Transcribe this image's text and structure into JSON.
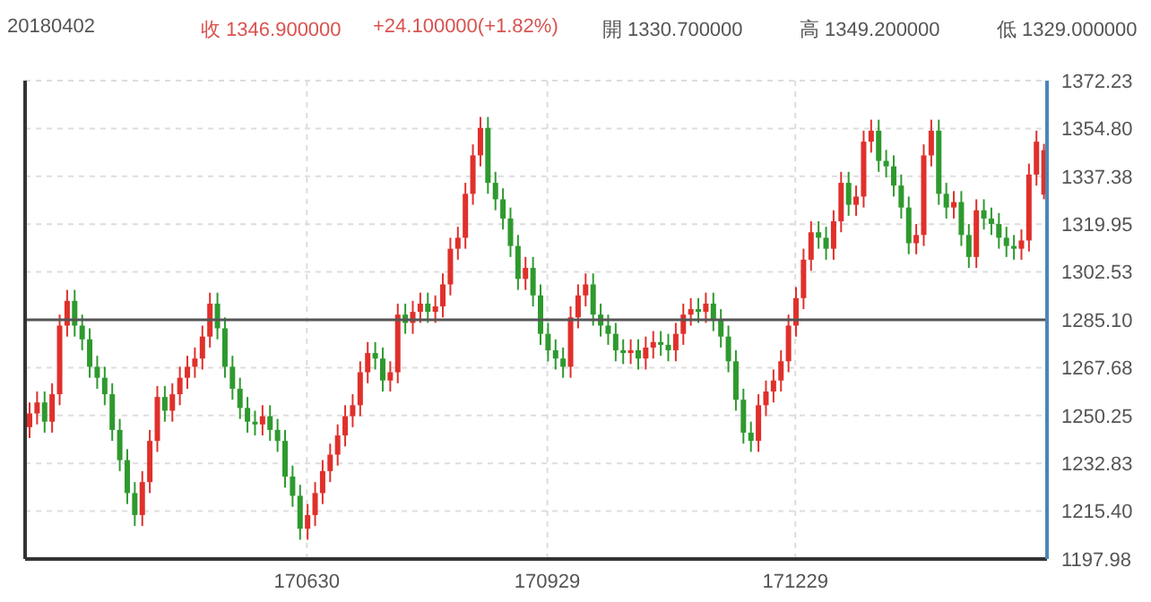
{
  "chart_data": {
    "type": "candlestick",
    "annotations": [
      "20180402",
      "收 1346.900000",
      "+24.100000(+1.82%)",
      "開 1330.700000",
      "高 1349.200000",
      "低 1329.000000"
    ],
    "categories": [
      null,
      null,
      null,
      null,
      null,
      null,
      null,
      null,
      null,
      null,
      null,
      null,
      null,
      null,
      null,
      null,
      null,
      null,
      null,
      null,
      null,
      null,
      null,
      null,
      null,
      null,
      null,
      null,
      null,
      null,
      null,
      null,
      null,
      null,
      null,
      null,
      null,
      "170630",
      null,
      null,
      null,
      null,
      null,
      null,
      null,
      null,
      null,
      null,
      null,
      null,
      null,
      null,
      null,
      null,
      null,
      null,
      null,
      null,
      null,
      null,
      null,
      null,
      null,
      null,
      null,
      null,
      null,
      null,
      null,
      "170929",
      null,
      null,
      null,
      null,
      null,
      null,
      null,
      null,
      null,
      null,
      null,
      null,
      null,
      null,
      null,
      null,
      null,
      null,
      null,
      null,
      null,
      null,
      null,
      null,
      null,
      null,
      null,
      null,
      null,
      null,
      null,
      null,
      "171229",
      null,
      null,
      null,
      null,
      null,
      null,
      null,
      null,
      null,
      null,
      null,
      null,
      null,
      null,
      null,
      null,
      null,
      null,
      null,
      null,
      null,
      null,
      null,
      null,
      null,
      null,
      null,
      null,
      null,
      null,
      null,
      null,
      null
    ],
    "ohlc": [
      [
        1246,
        1255,
        1242,
        1251
      ],
      [
        1251,
        1259,
        1247,
        1255
      ],
      [
        1255,
        1259,
        1244,
        1248
      ],
      [
        1248,
        1262,
        1244,
        1258
      ],
      [
        1258,
        1287,
        1254,
        1283
      ],
      [
        1283,
        1296,
        1279,
        1292
      ],
      [
        1292,
        1296,
        1279,
        1283
      ],
      [
        1283,
        1287,
        1274,
        1278
      ],
      [
        1278,
        1282,
        1264,
        1268
      ],
      [
        1268,
        1272,
        1260,
        1264
      ],
      [
        1264,
        1268,
        1254,
        1258
      ],
      [
        1258,
        1262,
        1241,
        1245
      ],
      [
        1245,
        1249,
        1230,
        1234
      ],
      [
        1234,
        1238,
        1218,
        1222
      ],
      [
        1222,
        1226,
        1210,
        1214
      ],
      [
        1214,
        1230,
        1210,
        1226
      ],
      [
        1226,
        1245,
        1222,
        1241
      ],
      [
        1241,
        1261,
        1237,
        1257
      ],
      [
        1257,
        1261,
        1248,
        1252
      ],
      [
        1252,
        1262,
        1248,
        1258
      ],
      [
        1258,
        1268,
        1254,
        1264
      ],
      [
        1264,
        1272,
        1260,
        1268
      ],
      [
        1268,
        1275,
        1264,
        1271
      ],
      [
        1271,
        1283,
        1267,
        1279
      ],
      [
        1279,
        1295,
        1275,
        1291
      ],
      [
        1291,
        1295,
        1278,
        1282
      ],
      [
        1282,
        1286,
        1264,
        1268
      ],
      [
        1268,
        1272,
        1256,
        1260
      ],
      [
        1260,
        1264,
        1249,
        1253
      ],
      [
        1253,
        1257,
        1244,
        1248
      ],
      [
        1248,
        1252,
        1243,
        1247
      ],
      [
        1247,
        1254,
        1243,
        1250
      ],
      [
        1250,
        1254,
        1241,
        1245
      ],
      [
        1245,
        1249,
        1237,
        1241
      ],
      [
        1241,
        1245,
        1224,
        1228
      ],
      [
        1228,
        1232,
        1217,
        1221
      ],
      [
        1221,
        1225,
        1205,
        1209
      ],
      [
        1209,
        1218,
        1205,
        1214
      ],
      [
        1214,
        1226,
        1210,
        1222
      ],
      [
        1222,
        1234,
        1218,
        1230
      ],
      [
        1230,
        1240,
        1226,
        1236
      ],
      [
        1236,
        1247,
        1232,
        1243
      ],
      [
        1243,
        1254,
        1239,
        1250
      ],
      [
        1250,
        1258,
        1246,
        1254
      ],
      [
        1254,
        1270,
        1250,
        1266
      ],
      [
        1266,
        1277,
        1262,
        1273
      ],
      [
        1273,
        1277,
        1267,
        1271
      ],
      [
        1271,
        1275,
        1259,
        1263
      ],
      [
        1263,
        1270,
        1259,
        1266
      ],
      [
        1266,
        1291,
        1262,
        1287
      ],
      [
        1287,
        1291,
        1280,
        1284
      ],
      [
        1284,
        1292,
        1280,
        1288
      ],
      [
        1288,
        1295,
        1284,
        1291
      ],
      [
        1291,
        1295,
        1284,
        1288
      ],
      [
        1288,
        1294,
        1284,
        1290
      ],
      [
        1290,
        1302,
        1286,
        1298
      ],
      [
        1298,
        1315,
        1294,
        1311
      ],
      [
        1311,
        1319,
        1307,
        1315
      ],
      [
        1315,
        1335,
        1311,
        1331
      ],
      [
        1331,
        1349,
        1327,
        1345
      ],
      [
        1345,
        1359,
        1341,
        1355
      ],
      [
        1355,
        1359,
        1331,
        1335
      ],
      [
        1335,
        1339,
        1325,
        1329
      ],
      [
        1329,
        1333,
        1318,
        1322
      ],
      [
        1322,
        1326,
        1308,
        1312
      ],
      [
        1312,
        1316,
        1296,
        1300
      ],
      [
        1300,
        1308,
        1296,
        1304
      ],
      [
        1304,
        1308,
        1290,
        1294
      ],
      [
        1294,
        1298,
        1276,
        1280
      ],
      [
        1280,
        1284,
        1270,
        1274
      ],
      [
        1274,
        1278,
        1267,
        1271
      ],
      [
        1271,
        1275,
        1264,
        1268
      ],
      [
        1268,
        1290,
        1264,
        1286
      ],
      [
        1286,
        1298,
        1282,
        1294
      ],
      [
        1294,
        1302,
        1290,
        1298
      ],
      [
        1298,
        1302,
        1283,
        1287
      ],
      [
        1287,
        1291,
        1279,
        1283
      ],
      [
        1283,
        1287,
        1276,
        1280
      ],
      [
        1280,
        1284,
        1270,
        1274
      ],
      [
        1274,
        1278,
        1269,
        1273
      ],
      [
        1273,
        1278,
        1269,
        1274
      ],
      [
        1274,
        1278,
        1267,
        1271
      ],
      [
        1271,
        1279,
        1267,
        1275
      ],
      [
        1275,
        1281,
        1271,
        1277
      ],
      [
        1277,
        1281,
        1272,
        1276
      ],
      [
        1276,
        1280,
        1270,
        1274
      ],
      [
        1274,
        1284,
        1270,
        1280
      ],
      [
        1280,
        1291,
        1276,
        1287
      ],
      [
        1287,
        1293,
        1283,
        1289
      ],
      [
        1289,
        1293,
        1284,
        1288
      ],
      [
        1288,
        1295,
        1284,
        1291
      ],
      [
        1291,
        1295,
        1281,
        1285
      ],
      [
        1285,
        1289,
        1275,
        1279
      ],
      [
        1279,
        1283,
        1266,
        1270
      ],
      [
        1270,
        1274,
        1252,
        1256
      ],
      [
        1256,
        1260,
        1240,
        1244
      ],
      [
        1244,
        1248,
        1237,
        1241
      ],
      [
        1241,
        1258,
        1237,
        1254
      ],
      [
        1254,
        1263,
        1250,
        1259
      ],
      [
        1259,
        1267,
        1255,
        1263
      ],
      [
        1263,
        1274,
        1259,
        1270
      ],
      [
        1270,
        1287,
        1266,
        1283
      ],
      [
        1283,
        1297,
        1279,
        1293
      ],
      [
        1293,
        1311,
        1289,
        1307
      ],
      [
        1307,
        1321,
        1303,
        1317
      ],
      [
        1317,
        1321,
        1311,
        1315
      ],
      [
        1315,
        1319,
        1307,
        1311
      ],
      [
        1311,
        1325,
        1307,
        1321
      ],
      [
        1321,
        1339,
        1317,
        1335
      ],
      [
        1335,
        1339,
        1323,
        1327
      ],
      [
        1327,
        1334,
        1323,
        1330
      ],
      [
        1330,
        1354,
        1326,
        1350
      ],
      [
        1350,
        1358,
        1346,
        1354
      ],
      [
        1354,
        1358,
        1339,
        1343
      ],
      [
        1343,
        1347,
        1337,
        1341
      ],
      [
        1341,
        1345,
        1330,
        1334
      ],
      [
        1334,
        1338,
        1322,
        1326
      ],
      [
        1326,
        1330,
        1309,
        1313
      ],
      [
        1313,
        1320,
        1309,
        1316
      ],
      [
        1316,
        1349,
        1312,
        1345
      ],
      [
        1345,
        1358,
        1341,
        1354
      ],
      [
        1354,
        1358,
        1327,
        1331
      ],
      [
        1331,
        1335,
        1322,
        1326
      ],
      [
        1326,
        1332,
        1322,
        1328
      ],
      [
        1328,
        1332,
        1312,
        1316
      ],
      [
        1316,
        1320,
        1304,
        1308
      ],
      [
        1308,
        1329,
        1304,
        1325
      ],
      [
        1325,
        1329,
        1318,
        1322
      ],
      [
        1322,
        1326,
        1316,
        1320
      ],
      [
        1320,
        1324,
        1311,
        1315
      ],
      [
        1315,
        1319,
        1308,
        1312
      ],
      [
        1312,
        1316,
        1307,
        1311
      ],
      [
        1311,
        1318,
        1307,
        1314
      ],
      [
        1314,
        1342,
        1310,
        1338
      ],
      [
        1338,
        1354,
        1334,
        1350
      ],
      [
        1330.7,
        1349.2,
        1329,
        1346.9
      ]
    ],
    "colors": [
      "#e0302b",
      "#e0302b",
      "#2e9a2e",
      "#e0302b",
      "#e0302b",
      "#e0302b",
      "#2e9a2e",
      "#2e9a2e",
      "#2e9a2e",
      "#2e9a2e",
      "#2e9a2e",
      "#2e9a2e",
      "#2e9a2e",
      "#2e9a2e",
      "#2e9a2e",
      "#e0302b",
      "#e0302b",
      "#e0302b",
      "#2e9a2e",
      "#e0302b",
      "#e0302b",
      "#e0302b",
      "#e0302b",
      "#e0302b",
      "#e0302b",
      "#2e9a2e",
      "#2e9a2e",
      "#2e9a2e",
      "#2e9a2e",
      "#2e9a2e",
      "#2e9a2e",
      "#e0302b",
      "#2e9a2e",
      "#2e9a2e",
      "#2e9a2e",
      "#2e9a2e",
      "#2e9a2e",
      "#e0302b",
      "#e0302b",
      "#e0302b",
      "#e0302b",
      "#e0302b",
      "#e0302b",
      "#e0302b",
      "#e0302b",
      "#e0302b",
      "#2e9a2e",
      "#2e9a2e",
      "#e0302b",
      "#e0302b",
      "#2e9a2e",
      "#e0302b",
      "#e0302b",
      "#2e9a2e",
      "#e0302b",
      "#e0302b",
      "#e0302b",
      "#e0302b",
      "#e0302b",
      "#e0302b",
      "#e0302b",
      "#2e9a2e",
      "#2e9a2e",
      "#2e9a2e",
      "#2e9a2e",
      "#2e9a2e",
      "#e0302b",
      "#2e9a2e",
      "#2e9a2e",
      "#2e9a2e",
      "#2e9a2e",
      "#2e9a2e",
      "#e0302b",
      "#e0302b",
      "#e0302b",
      "#2e9a2e",
      "#2e9a2e",
      "#2e9a2e",
      "#2e9a2e",
      "#2e9a2e",
      "#e0302b",
      "#2e9a2e",
      "#e0302b",
      "#e0302b",
      "#2e9a2e",
      "#2e9a2e",
      "#e0302b",
      "#e0302b",
      "#e0302b",
      "#2e9a2e",
      "#e0302b",
      "#2e9a2e",
      "#2e9a2e",
      "#2e9a2e",
      "#2e9a2e",
      "#2e9a2e",
      "#2e9a2e",
      "#e0302b",
      "#e0302b",
      "#e0302b",
      "#e0302b",
      "#e0302b",
      "#e0302b",
      "#e0302b",
      "#e0302b",
      "#2e9a2e",
      "#2e9a2e",
      "#e0302b",
      "#e0302b",
      "#2e9a2e",
      "#e0302b",
      "#e0302b",
      "#e0302b",
      "#2e9a2e",
      "#2e9a2e",
      "#2e9a2e",
      "#2e9a2e",
      "#2e9a2e",
      "#e0302b",
      "#e0302b",
      "#e0302b",
      "#2e9a2e",
      "#2e9a2e",
      "#e0302b",
      "#2e9a2e",
      "#2e9a2e",
      "#e0302b",
      "#2e9a2e",
      "#2e9a2e",
      "#2e9a2e",
      "#2e9a2e",
      "#2e9a2e",
      "#e0302b",
      "#e0302b",
      "#e0302b",
      "#e0302b"
    ],
    "ylim": [
      1197.98,
      1372.23
    ],
    "yticks": [
      1372.23,
      {
        "value": 1354.8,
        "label": "1354.80"
      },
      1337.38,
      1319.95,
      1302.53,
      {
        "value": 1285.1,
        "label": "1285.10"
      },
      1267.68,
      1250.25,
      1232.83,
      {
        "value": 1215.4,
        "label": "1215.40"
      },
      1197.98
    ],
    "ref_lines": [
      {
        "axis": "y",
        "value": 1285.1,
        "color": "#555555"
      }
    ],
    "grid": true
  }
}
